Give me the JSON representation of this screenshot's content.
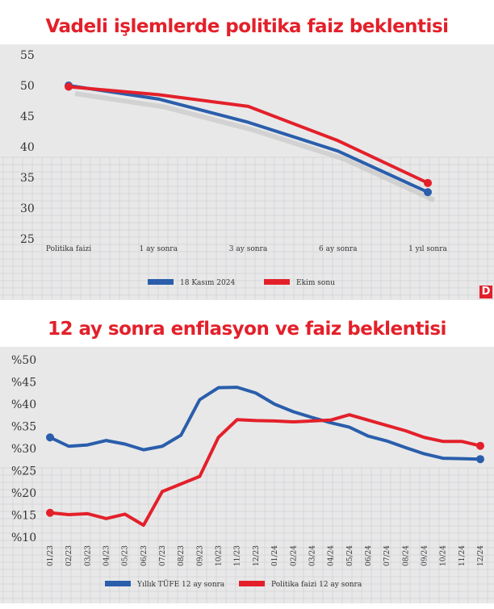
{
  "chart_data": [
    {
      "type": "line",
      "title": "Vadeli işlemlerde politika faiz beklentisi",
      "categories": [
        "Politika faizi",
        "1 ay sonra",
        "3 ay sonra",
        "6 ay sonra",
        "1 yıl sonra"
      ],
      "yticks": [
        "55",
        "50",
        "45",
        "40",
        "35",
        "30",
        "25"
      ],
      "ylim": [
        25,
        55
      ],
      "series": [
        {
          "name": "18 Kasım 2024",
          "color": "#2a5eab",
          "values": [
            50,
            47.8,
            44,
            39.3,
            32.6
          ]
        },
        {
          "name": "Ekim sonu",
          "color": "#e3202a",
          "values": [
            49.8,
            48.5,
            46.6,
            41,
            34.1
          ]
        }
      ],
      "legend": "bottom",
      "logo": "D"
    },
    {
      "type": "line",
      "title": "12 ay sonra enflasyon ve faiz beklentisi",
      "categories": [
        "01/23",
        "02/23",
        "03/23",
        "04/23",
        "05/23",
        "06/23",
        "07/23",
        "08/23",
        "09/23",
        "10/23",
        "11/23",
        "12/23",
        "01/24",
        "02/24",
        "03/24",
        "04/24",
        "05/24",
        "06/24",
        "07/24",
        "08/24",
        "09/24",
        "10/24",
        "11/24",
        "12/24"
      ],
      "yticks": [
        "%50",
        "%45",
        "%40",
        "%35",
        "%30",
        "%25",
        "%20",
        "%15",
        "%10"
      ],
      "ylim": [
        10,
        50
      ],
      "series": [
        {
          "name": "Yıllık TÜFE 12 ay sonra",
          "color": "#2a5eab",
          "values": [
            32.5,
            30.5,
            30.8,
            31.8,
            31,
            29.7,
            30.5,
            33,
            41,
            43.7,
            43.8,
            42.5,
            40,
            38.3,
            37,
            35.8,
            34.8,
            32.8,
            31.7,
            30.2,
            28.8,
            27.8,
            27.7,
            27.6
          ]
        },
        {
          "name": "Politika faizi 12 ay sonra",
          "color": "#e3202a",
          "values": [
            15.5,
            15.1,
            15.3,
            14.2,
            15.2,
            12.7,
            20.3,
            22,
            23.7,
            32.5,
            36.5,
            36.3,
            36.2,
            36,
            36.2,
            36.4,
            37.6,
            36.4,
            35.2,
            34,
            32.5,
            31.6,
            31.6,
            30.6
          ]
        }
      ],
      "legend": "bottom"
    }
  ]
}
